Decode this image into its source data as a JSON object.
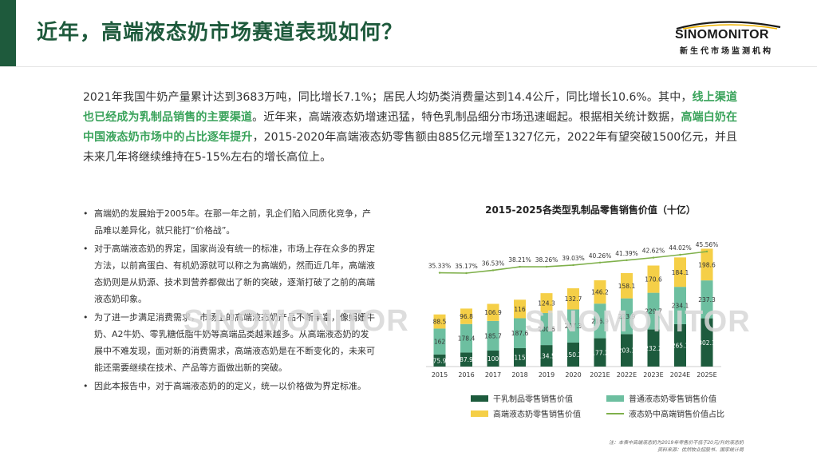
{
  "header": {
    "title": "近年，高端液态奶市场赛道表现如何？",
    "logo_name": "SINOMONITOR",
    "logo_sub": "新生代市场监测机构"
  },
  "intro": {
    "p1": "2021年我国牛奶产量累计达到3683万吨，同比增长7.1%；居民人均奶类消费量达到14.4公斤，同比增长10.6%。其中，",
    "h1": "线上渠道也已经成为乳制品销售的主要渠道",
    "p2": "。近年来，高端液态奶增速迅猛，特色乳制品细分市场迅速崛起。根据相关统计数据，",
    "h2": "高端白奶在中国液态奶市场中的占比逐年提升",
    "p3": "，2015-2020年高端液态奶零售额由885亿元增至1327亿元，2022年有望突破1500亿元，并且未来几年将继续维持在5-15%左右的增长高位上。"
  },
  "bullets": [
    "高端奶的发展始于2005年。在那一年之前，乳企们陷入同质化竞争，产品难以差异化，就只能打“价格战”。",
    "对于高端液态奶的界定，国家尚没有统一的标准，市场上存在众多的界定方法，以前高蛋白、有机奶源就可以称之为高端奶，然而近几年，高端液态奶则是从奶源、技术到营养都做出了新的突破，逐渐打破了之前的高端液态奶印象。",
    "为了进一步满足消费需求，市场上的高端液态奶产品不断丰富，像娟姗牛奶、A2牛奶、零乳糖低脂牛奶等高端品类越来越多。从高端液态奶的发展中不难发现，面对新的消费需求，高端液态奶是在不断变化的，未来可能还需要继续在技术、产品等方面做出新的突破。",
    "因此本报告中，对于高端液态奶的的定义，统一以价格做为界定标准。"
  ],
  "bullet_symbol": "•",
  "watermark": "SINOMONITOR",
  "footnote": {
    "line1": "注：本表中高端液态奶为2019年零售价不低于20元/升的液态奶",
    "line2": "资料来源：优然牧业招股书、国家统计局"
  },
  "colors": {
    "accent": "#1e5a3c",
    "highlight": "#3aa35b",
    "dry": "#1d5b3d",
    "regular": "#6dbfa0",
    "premium": "#f5cf47",
    "share_line": "#7fb04b"
  },
  "chart_data": {
    "type": "bar",
    "stacked": true,
    "title": "2015-2025各类型乳制品零售销售价值（十亿）",
    "categories": [
      "2015",
      "2016",
      "2017",
      "2018",
      "2019",
      "2020",
      "2021E",
      "2022E",
      "2023E",
      "2024E",
      "2025E"
    ],
    "series": [
      {
        "name": "干乳制品零售销售价值",
        "values": [
          75.9,
          87.9,
          100,
          115,
          134.5,
          150.2,
          177.2,
          203.1,
          232.2,
          265.1,
          302.1
        ]
      },
      {
        "name": "普通液态奶零售销售价值",
        "values": [
          162,
          178.4,
          185.7,
          187.6,
          200.6,
          207.3,
          216.9,
          223.9,
          229.7,
          234.1,
          237.3
        ]
      },
      {
        "name": "高端液态奶零售销售价值",
        "values": [
          88.5,
          96.8,
          106.9,
          116,
          124.3,
          132.7,
          146.2,
          158.1,
          170.6,
          184.1,
          198.6
        ]
      }
    ],
    "line_series": {
      "name": "液态奶中高端销售价值占比",
      "labels": [
        "35.33%",
        "35.17%",
        "36.53%",
        "38.21%",
        "38.26%",
        "39.03%",
        "40.26%",
        "41.39%",
        "42.62%",
        "44.02%",
        "45.56%"
      ],
      "values": [
        35.33,
        35.17,
        36.53,
        38.21,
        38.26,
        39.03,
        40.26,
        41.39,
        42.62,
        44.02,
        45.56
      ]
    },
    "legend_position": "bottom",
    "grid": false
  }
}
